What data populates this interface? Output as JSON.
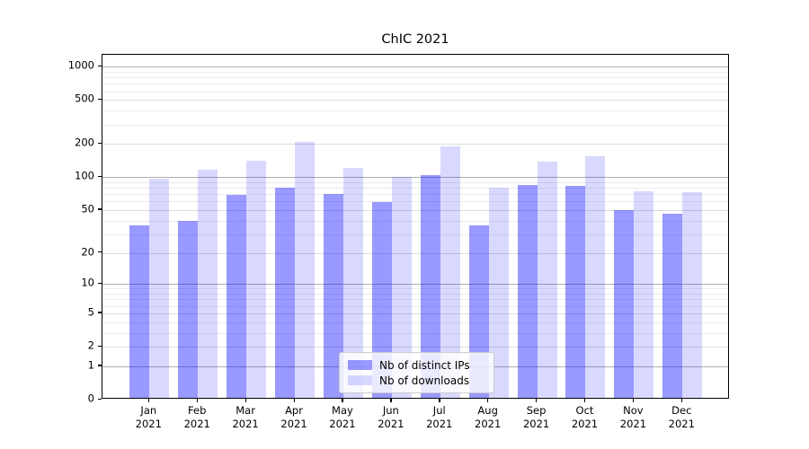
{
  "chart_data": {
    "type": "bar",
    "title": "ChIC 2021",
    "categories": [
      "Jan",
      "Feb",
      "Mar",
      "Apr",
      "May",
      "Jun",
      "Jul",
      "Aug",
      "Sep",
      "Oct",
      "Nov",
      "Dec"
    ],
    "category_year": "2021",
    "series": [
      {
        "name": "Nb of distinct IPs",
        "color": "rgba(0,0,255,0.40)",
        "color_hex": "#9999ff",
        "values": [
          35,
          38,
          67,
          78,
          68,
          57,
          101,
          35,
          82,
          80,
          48,
          45
        ]
      },
      {
        "name": "Nb of downloads",
        "color": "rgba(0,0,255,0.15)",
        "color_hex": "#d9d9ff",
        "values": [
          93,
          113,
          136,
          200,
          117,
          96,
          184,
          78,
          134,
          149,
          72,
          70
        ]
      }
    ],
    "yscale": "log10(value+1)",
    "yticks": [
      0,
      1,
      2,
      5,
      10,
      20,
      50,
      100,
      200,
      500,
      1000
    ],
    "ytick_minor": [
      3,
      4,
      6,
      7,
      8,
      9,
      30,
      40,
      60,
      70,
      80,
      90,
      300,
      400,
      600,
      700,
      800,
      900
    ],
    "ylim": [
      0,
      1270
    ],
    "grid": "on",
    "legend_position": "lower center",
    "axis_color": "#000000",
    "grid_major_dark_color": "#b0b0b0",
    "grid_major_light_color": "#dcdcdc",
    "grid_minor_color": "#ececec",
    "background_color": "#ffffff"
  }
}
